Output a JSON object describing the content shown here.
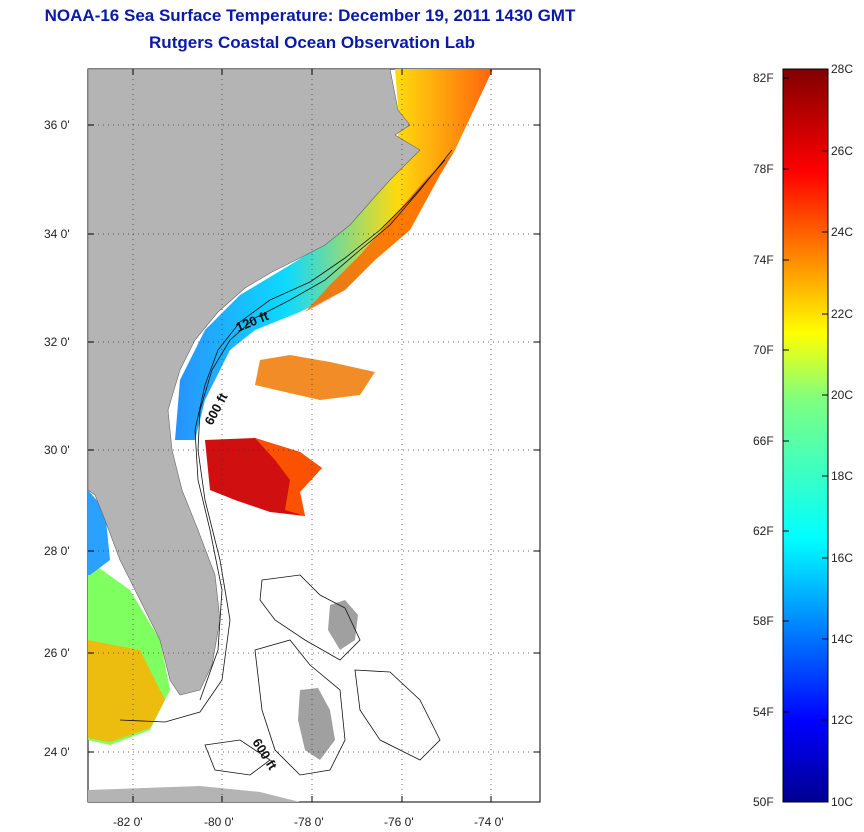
{
  "title": "NOAA-16 Sea Surface Temperature:  December 19, 2011 1430 GMT",
  "subtitle": "Rutgers Coastal Ocean Observation Lab",
  "lat_ticks": [
    "36 0'",
    "34 0'",
    "32 0'",
    "30 0'",
    "28 0'",
    "26 0'",
    "24 0'"
  ],
  "lon_ticks": [
    "-82 0'",
    "-80 0'",
    "-78 0'",
    "-76 0'",
    "-74 0'"
  ],
  "isobath_labels": [
    "120 ft",
    "600 ft",
    "600 ft"
  ],
  "colorbar": {
    "fahrenheit": [
      "82F",
      "78F",
      "74F",
      "70F",
      "66F",
      "62F",
      "58F",
      "54F",
      "50F"
    ],
    "celsius": [
      "28C",
      "26C",
      "24C",
      "22C",
      "20C",
      "18C",
      "16C",
      "14C",
      "12C",
      "10C"
    ]
  },
  "colors": {
    "title": "#0a1aa8",
    "land": "#b4b4b4",
    "cold": "#00008f",
    "warm": "#800000"
  }
}
